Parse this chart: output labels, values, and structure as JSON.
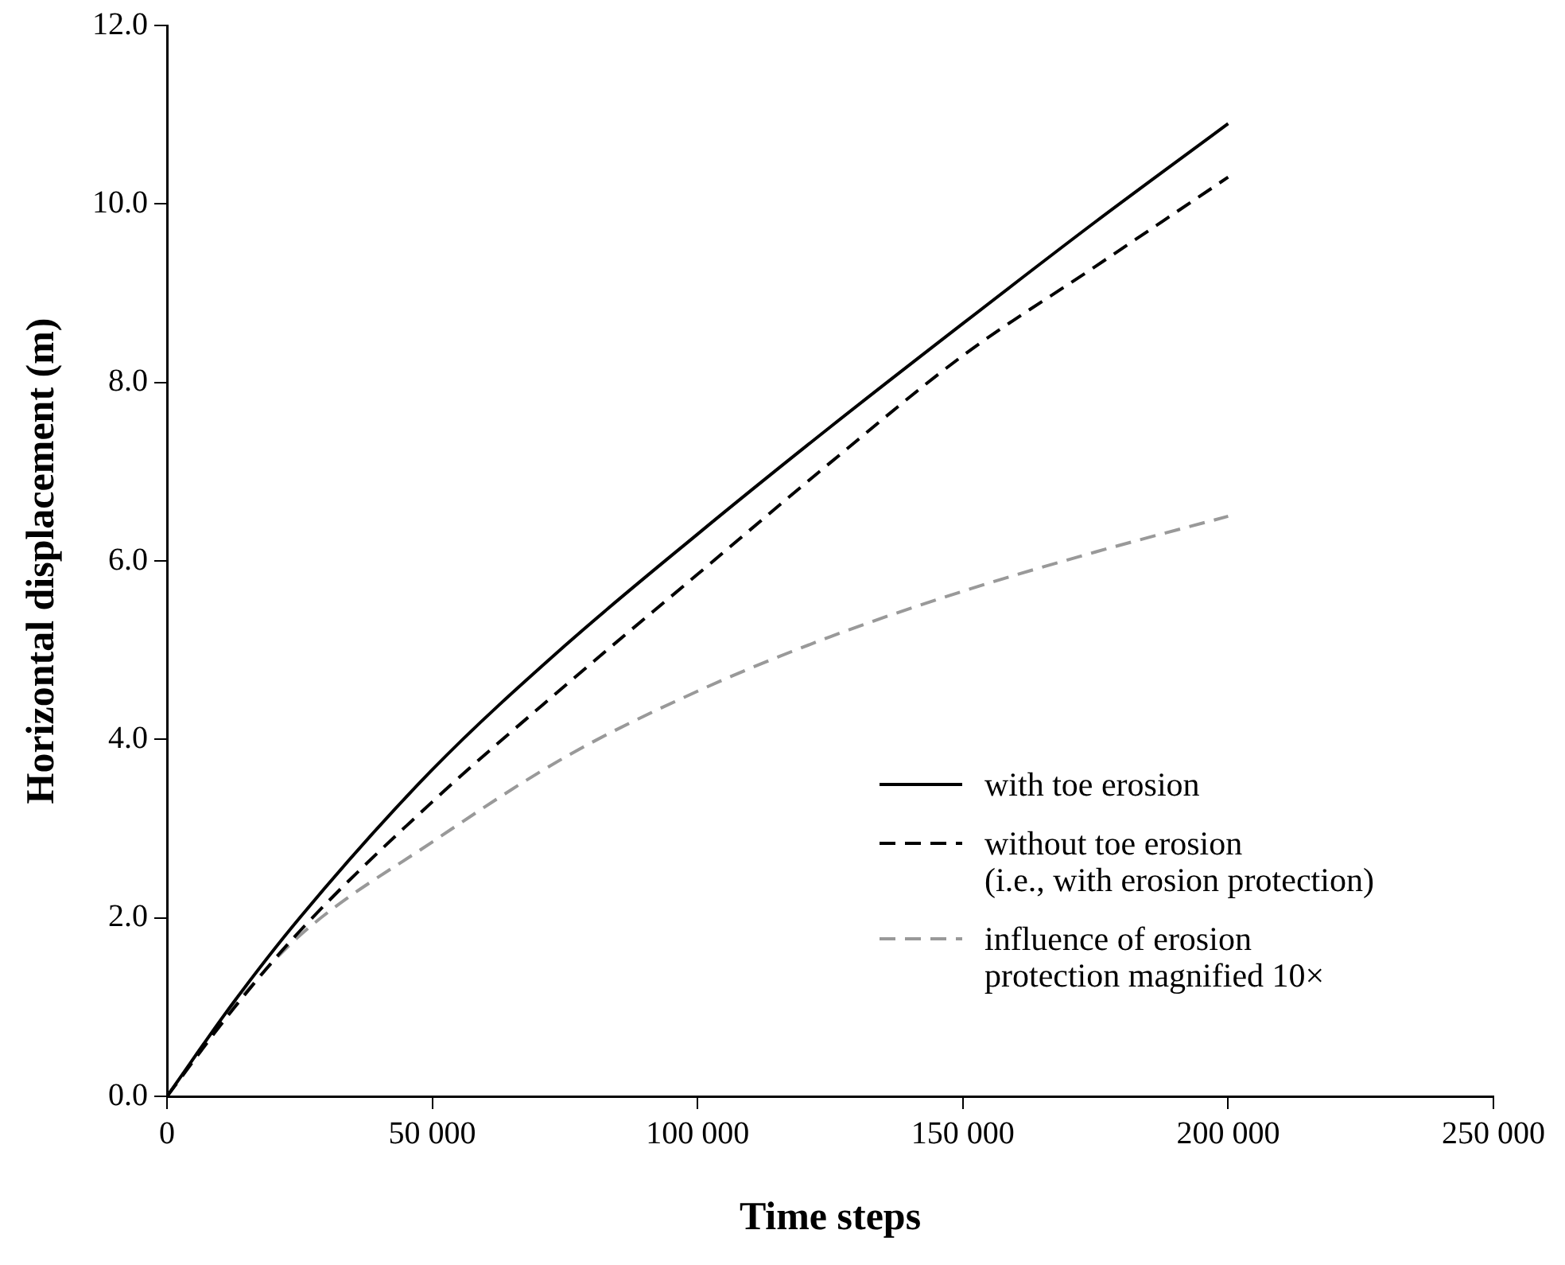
{
  "chart_data": {
    "type": "line",
    "xlabel": "Time steps",
    "ylabel": "Horizontal displacement (m)",
    "x": [
      0,
      12500,
      25000,
      50000,
      75000,
      100000,
      125000,
      150000,
      175000,
      200000
    ],
    "series": [
      {
        "name": "with toe erosion",
        "color": "#000000",
        "line_style": "solid",
        "values": [
          0,
          1.05,
          2.0,
          3.66,
          5.05,
          6.3,
          7.5,
          8.66,
          9.8,
          10.9
        ]
      },
      {
        "name": "without toe erosion\n(i.e., with erosion protection)",
        "color": "#000000",
        "line_style": "dashed",
        "values": [
          0,
          0.98,
          1.85,
          3.3,
          4.6,
          5.85,
          7.1,
          8.3,
          9.3,
          10.3
        ]
      },
      {
        "name": "influence of erosion\nprotection magnified 10×",
        "color": "#999999",
        "line_style": "dashed",
        "values": [
          0,
          1.0,
          1.8,
          2.85,
          3.8,
          4.54,
          5.15,
          5.66,
          6.1,
          6.5
        ]
      }
    ],
    "xlim": [
      0,
      250000
    ],
    "xticks": [
      0,
      {
        "value": 50000,
        "label": "50 000"
      },
      {
        "value": 100000,
        "label": "100 000"
      },
      {
        "value": 150000,
        "label": "150 000"
      },
      {
        "value": 200000,
        "label": "200 000"
      },
      {
        "value": 250000,
        "label": "250 000"
      }
    ],
    "ylim": [
      0,
      12
    ],
    "yticks": [
      {
        "value": 0,
        "label": "0.0"
      },
      {
        "value": 2,
        "label": "2.0"
      },
      {
        "value": 4,
        "label": "4.0"
      },
      {
        "value": 6,
        "label": "6.0"
      },
      {
        "value": 8,
        "label": "8.0"
      },
      {
        "value": 10,
        "label": "10.0"
      },
      {
        "value": 12,
        "label": "12.0"
      }
    ],
    "grid": false,
    "legend": "bottom right",
    "marker": "none"
  }
}
